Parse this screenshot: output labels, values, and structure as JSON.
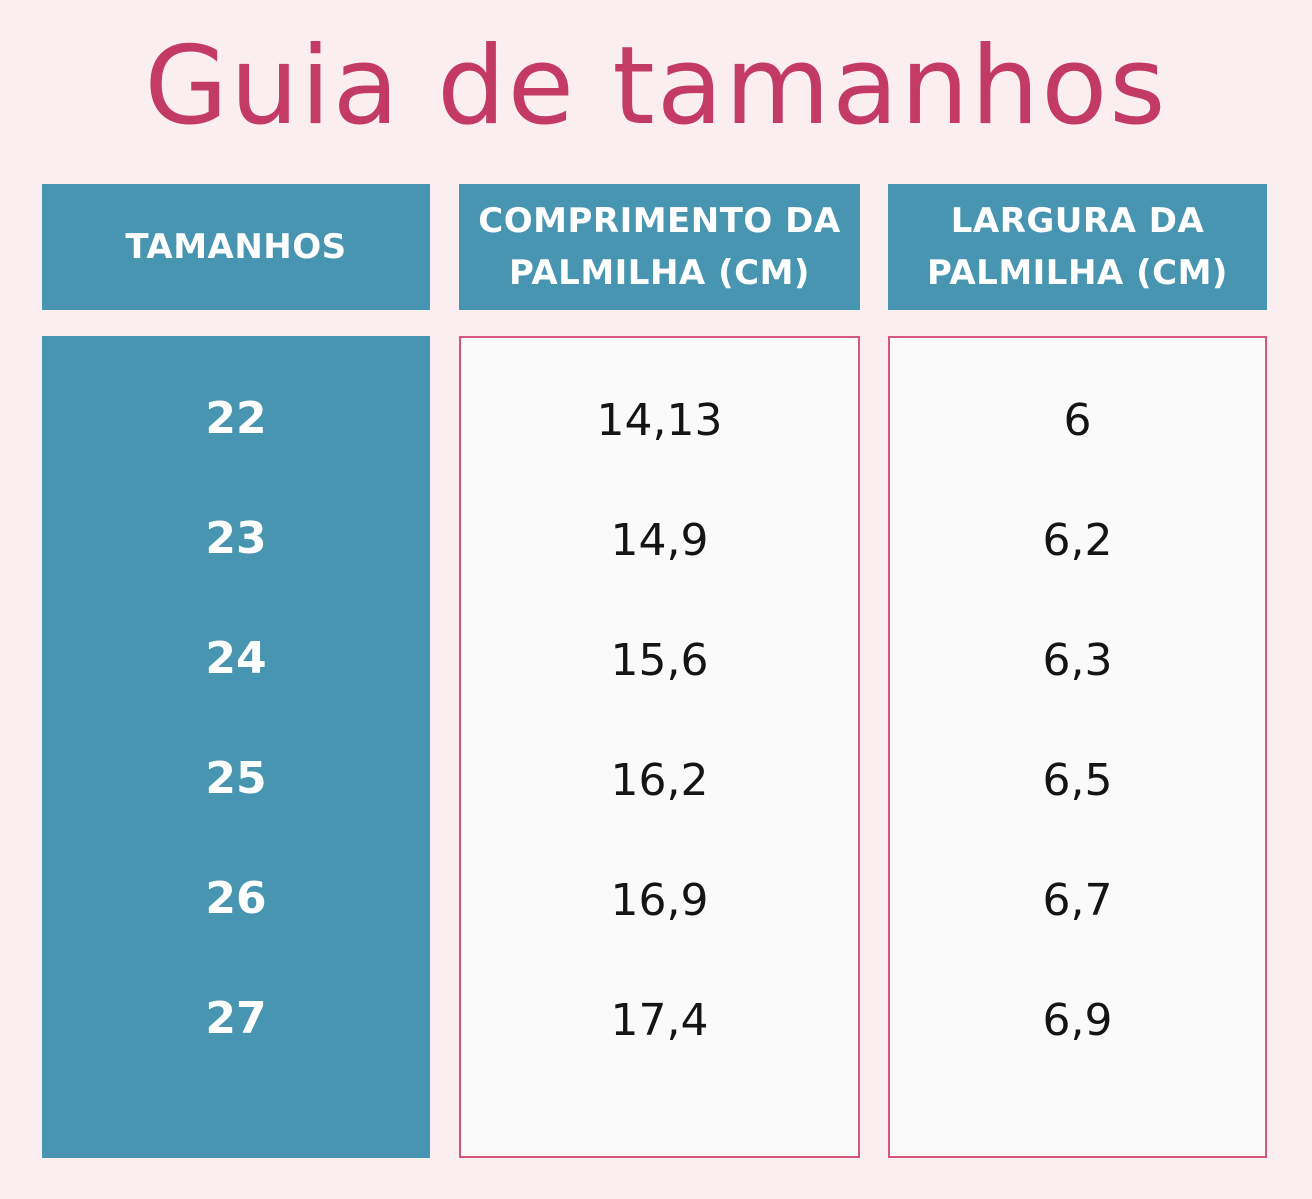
{
  "title": "Guia de tamanhos",
  "colors": {
    "background": "#fbeef1",
    "title": "#c33a66",
    "header": "#4795b0",
    "border": "#d6577d"
  },
  "chart_data": {
    "type": "table",
    "columns": [
      "TAMANHOS",
      "COMPRIMENTO DA PALMILHA (CM)",
      "LARGURA DA PALMILHA (CM)"
    ],
    "rows": [
      [
        "22",
        "14,13",
        "6"
      ],
      [
        "23",
        "14,9",
        "6,2"
      ],
      [
        "24",
        "15,6",
        "6,3"
      ],
      [
        "25",
        "16,2",
        "6,5"
      ],
      [
        "26",
        "16,9",
        "6,7"
      ],
      [
        "27",
        "17,4",
        "6,9"
      ]
    ]
  }
}
